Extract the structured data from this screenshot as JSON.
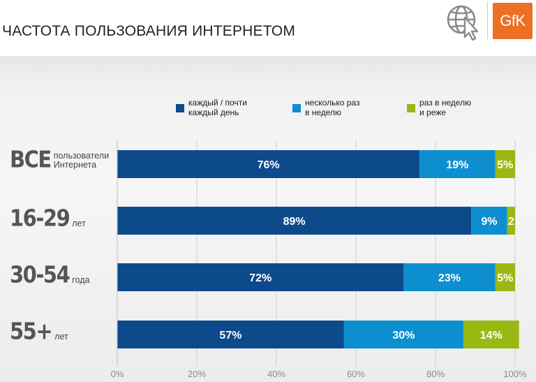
{
  "header": {
    "title": "ЧАСТОТА ПОЛЬЗОВАНИЯ ИНТЕРНЕТОМ",
    "logo_text": "GfK",
    "logo_icon": "globe-cursor-icon"
  },
  "colors": {
    "daily": "#0d4a8c",
    "weekly_several": "#0d8ecf",
    "weekly_or_less": "#9ab813",
    "gfk_orange": "#ec6f23"
  },
  "rows": [
    {
      "big": "ВСЕ",
      "small": "пользователи\nИнтернета"
    },
    {
      "big": "16-29",
      "small": "лет"
    },
    {
      "big": "30-54",
      "small": "года"
    },
    {
      "big": "55+",
      "small": "лет"
    }
  ],
  "chart_data": {
    "type": "bar",
    "orientation": "horizontal",
    "stacked": true,
    "categories": [
      "ВСЕ пользователи Интернета",
      "16-29 лет",
      "30-54 года",
      "55+ лет"
    ],
    "series": [
      {
        "name": "каждый / почти\nкаждый день",
        "values": [
          76,
          89,
          72,
          57
        ],
        "labels": [
          "76%",
          "89%",
          "72%",
          "57%"
        ]
      },
      {
        "name": "несколько раз\nв неделю",
        "values": [
          19,
          9,
          23,
          30
        ],
        "labels": [
          "19%",
          "9%",
          "23%",
          "30%"
        ]
      },
      {
        "name": "раз в неделю\nи реже",
        "values": [
          5,
          2,
          5,
          14
        ],
        "labels": [
          "5%",
          "2",
          "5%",
          "14%"
        ]
      }
    ],
    "xlim": [
      0,
      100
    ],
    "xticks": [
      "0%",
      "20%",
      "40%",
      "60%",
      "80%",
      "100%"
    ],
    "grid": true,
    "legend": "top"
  }
}
